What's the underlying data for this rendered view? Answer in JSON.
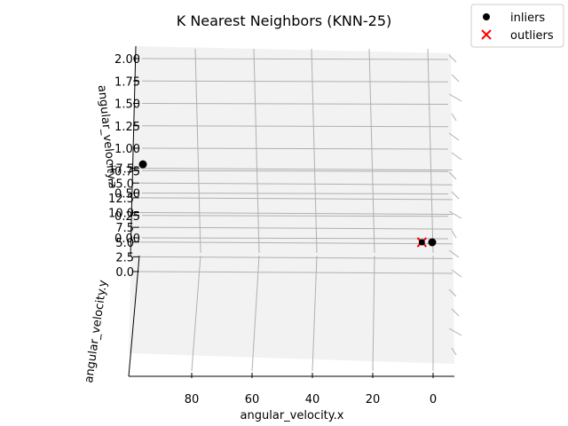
{
  "chart_data": {
    "type": "scatter",
    "title": "K Nearest Neighbors (KNN-25)",
    "xlabel": "angular_velocity.x",
    "ylabel": "angular_velocity.y",
    "zlabel": "angular_velocity.z",
    "x_ticks": [
      "80",
      "60",
      "40",
      "20",
      "0"
    ],
    "y_ticks": [
      "0.0",
      "2.5",
      "5.0",
      "7.5",
      "10.0",
      "12.5",
      "15.0",
      "17.5"
    ],
    "z_ticks": [
      "0.00",
      "0.25",
      "0.50",
      "0.75",
      "1.00",
      "1.25",
      "1.50",
      "1.75",
      "2.00"
    ],
    "legend_position": "top-right",
    "series": [
      {
        "name": "inliers",
        "marker": "circle",
        "color": "#000000",
        "points": [
          {
            "x": 0.3,
            "y": 0.0,
            "z": 0.0
          },
          {
            "x": 97,
            "y": 0.0,
            "z": 0.82
          }
        ]
      },
      {
        "name": "outliers",
        "marker": "x",
        "color": "#ff0000",
        "points": [
          {
            "x": 0.2,
            "y": 0.0,
            "z": 0.0
          }
        ]
      }
    ]
  }
}
